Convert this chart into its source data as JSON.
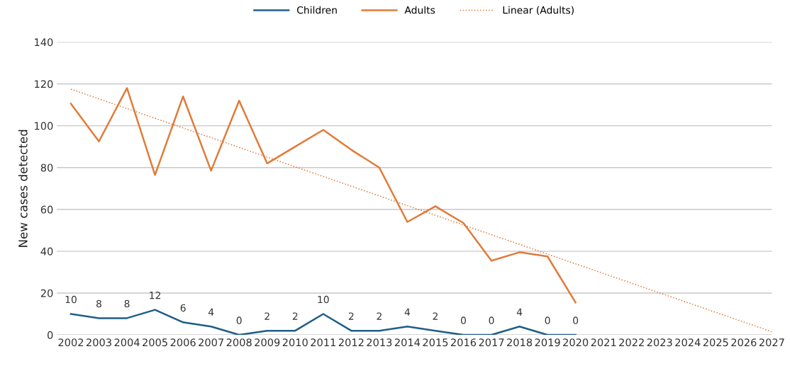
{
  "chart_data": {
    "type": "line",
    "ylabel": "New cases detected",
    "categories": [
      "2002",
      "2003",
      "2004",
      "2005",
      "2006",
      "2007",
      "2008",
      "2009",
      "2010",
      "2011",
      "2012",
      "2013",
      "2014",
      "2015",
      "2016",
      "2017",
      "2018",
      "2019",
      "2020",
      "2021",
      "2022",
      "2023",
      "2024",
      "2025",
      "2026",
      "2027"
    ],
    "series": [
      {
        "name": "Children",
        "color": "#1f5f86",
        "data_labels": true,
        "values": [
          10,
          8,
          8,
          12,
          6,
          4,
          0,
          2,
          2,
          10,
          2,
          2,
          4,
          2,
          0,
          0,
          4,
          0,
          0,
          null,
          null,
          null,
          null,
          null,
          null,
          null
        ]
      },
      {
        "name": "Adults",
        "color": "#e07b39",
        "values": [
          110.5,
          92.5,
          118,
          76.5,
          114,
          78.5,
          112,
          82,
          90,
          98,
          88.5,
          80,
          54,
          61.5,
          53.5,
          35.5,
          39.5,
          37.5,
          15.5,
          null,
          null,
          null,
          null,
          null,
          null,
          null
        ]
      },
      {
        "name": "Linear (Adults)",
        "color": "#e07b39",
        "line_style": "dotted",
        "values": [
          117.5,
          null,
          null,
          null,
          null,
          null,
          null,
          null,
          null,
          null,
          null,
          null,
          null,
          null,
          null,
          null,
          null,
          null,
          null,
          null,
          null,
          null,
          null,
          null,
          null,
          1.5
        ]
      }
    ],
    "ylim": [
      0,
      140
    ],
    "yticks": [
      0,
      20,
      40,
      60,
      80,
      100,
      120,
      140
    ],
    "grid": "y",
    "legend": "top"
  }
}
